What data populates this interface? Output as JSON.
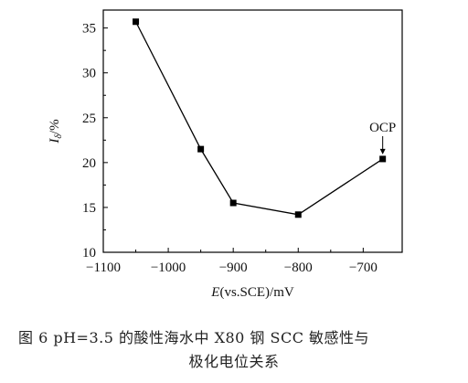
{
  "chart_data": {
    "type": "line",
    "x": [
      -1050,
      -950,
      -900,
      -800,
      -670
    ],
    "series": [
      {
        "values": [
          35.7,
          21.5,
          15.5,
          14.2,
          20.4
        ]
      }
    ],
    "xlabel_italic": "E",
    "xlabel_rest": "(vs.SCE)/mV",
    "ylabel_italic": "I",
    "ylabel_sub": "δ",
    "ylabel_rest": "/%",
    "xlim": [
      -1100,
      -640
    ],
    "ylim": [
      10,
      37
    ],
    "xticks": [
      -1100,
      -1000,
      -900,
      -800,
      -700
    ],
    "xtick_labels": [
      "−1100",
      "−1000",
      "−900",
      "−800",
      "−700"
    ],
    "yticks": [
      10,
      15,
      20,
      25,
      30,
      35
    ],
    "ytick_labels": [
      "10",
      "15",
      "20",
      "25",
      "30",
      "35"
    ],
    "annotation": {
      "text": "OCP",
      "x": -670,
      "y": 20.4
    },
    "grid": false,
    "marker": "square",
    "line_color": "#000000"
  },
  "caption": {
    "line1": "图 6   pH=3.5 的酸性海水中 X80 钢 SCC 敏感性与",
    "line2": "极化电位关系"
  }
}
